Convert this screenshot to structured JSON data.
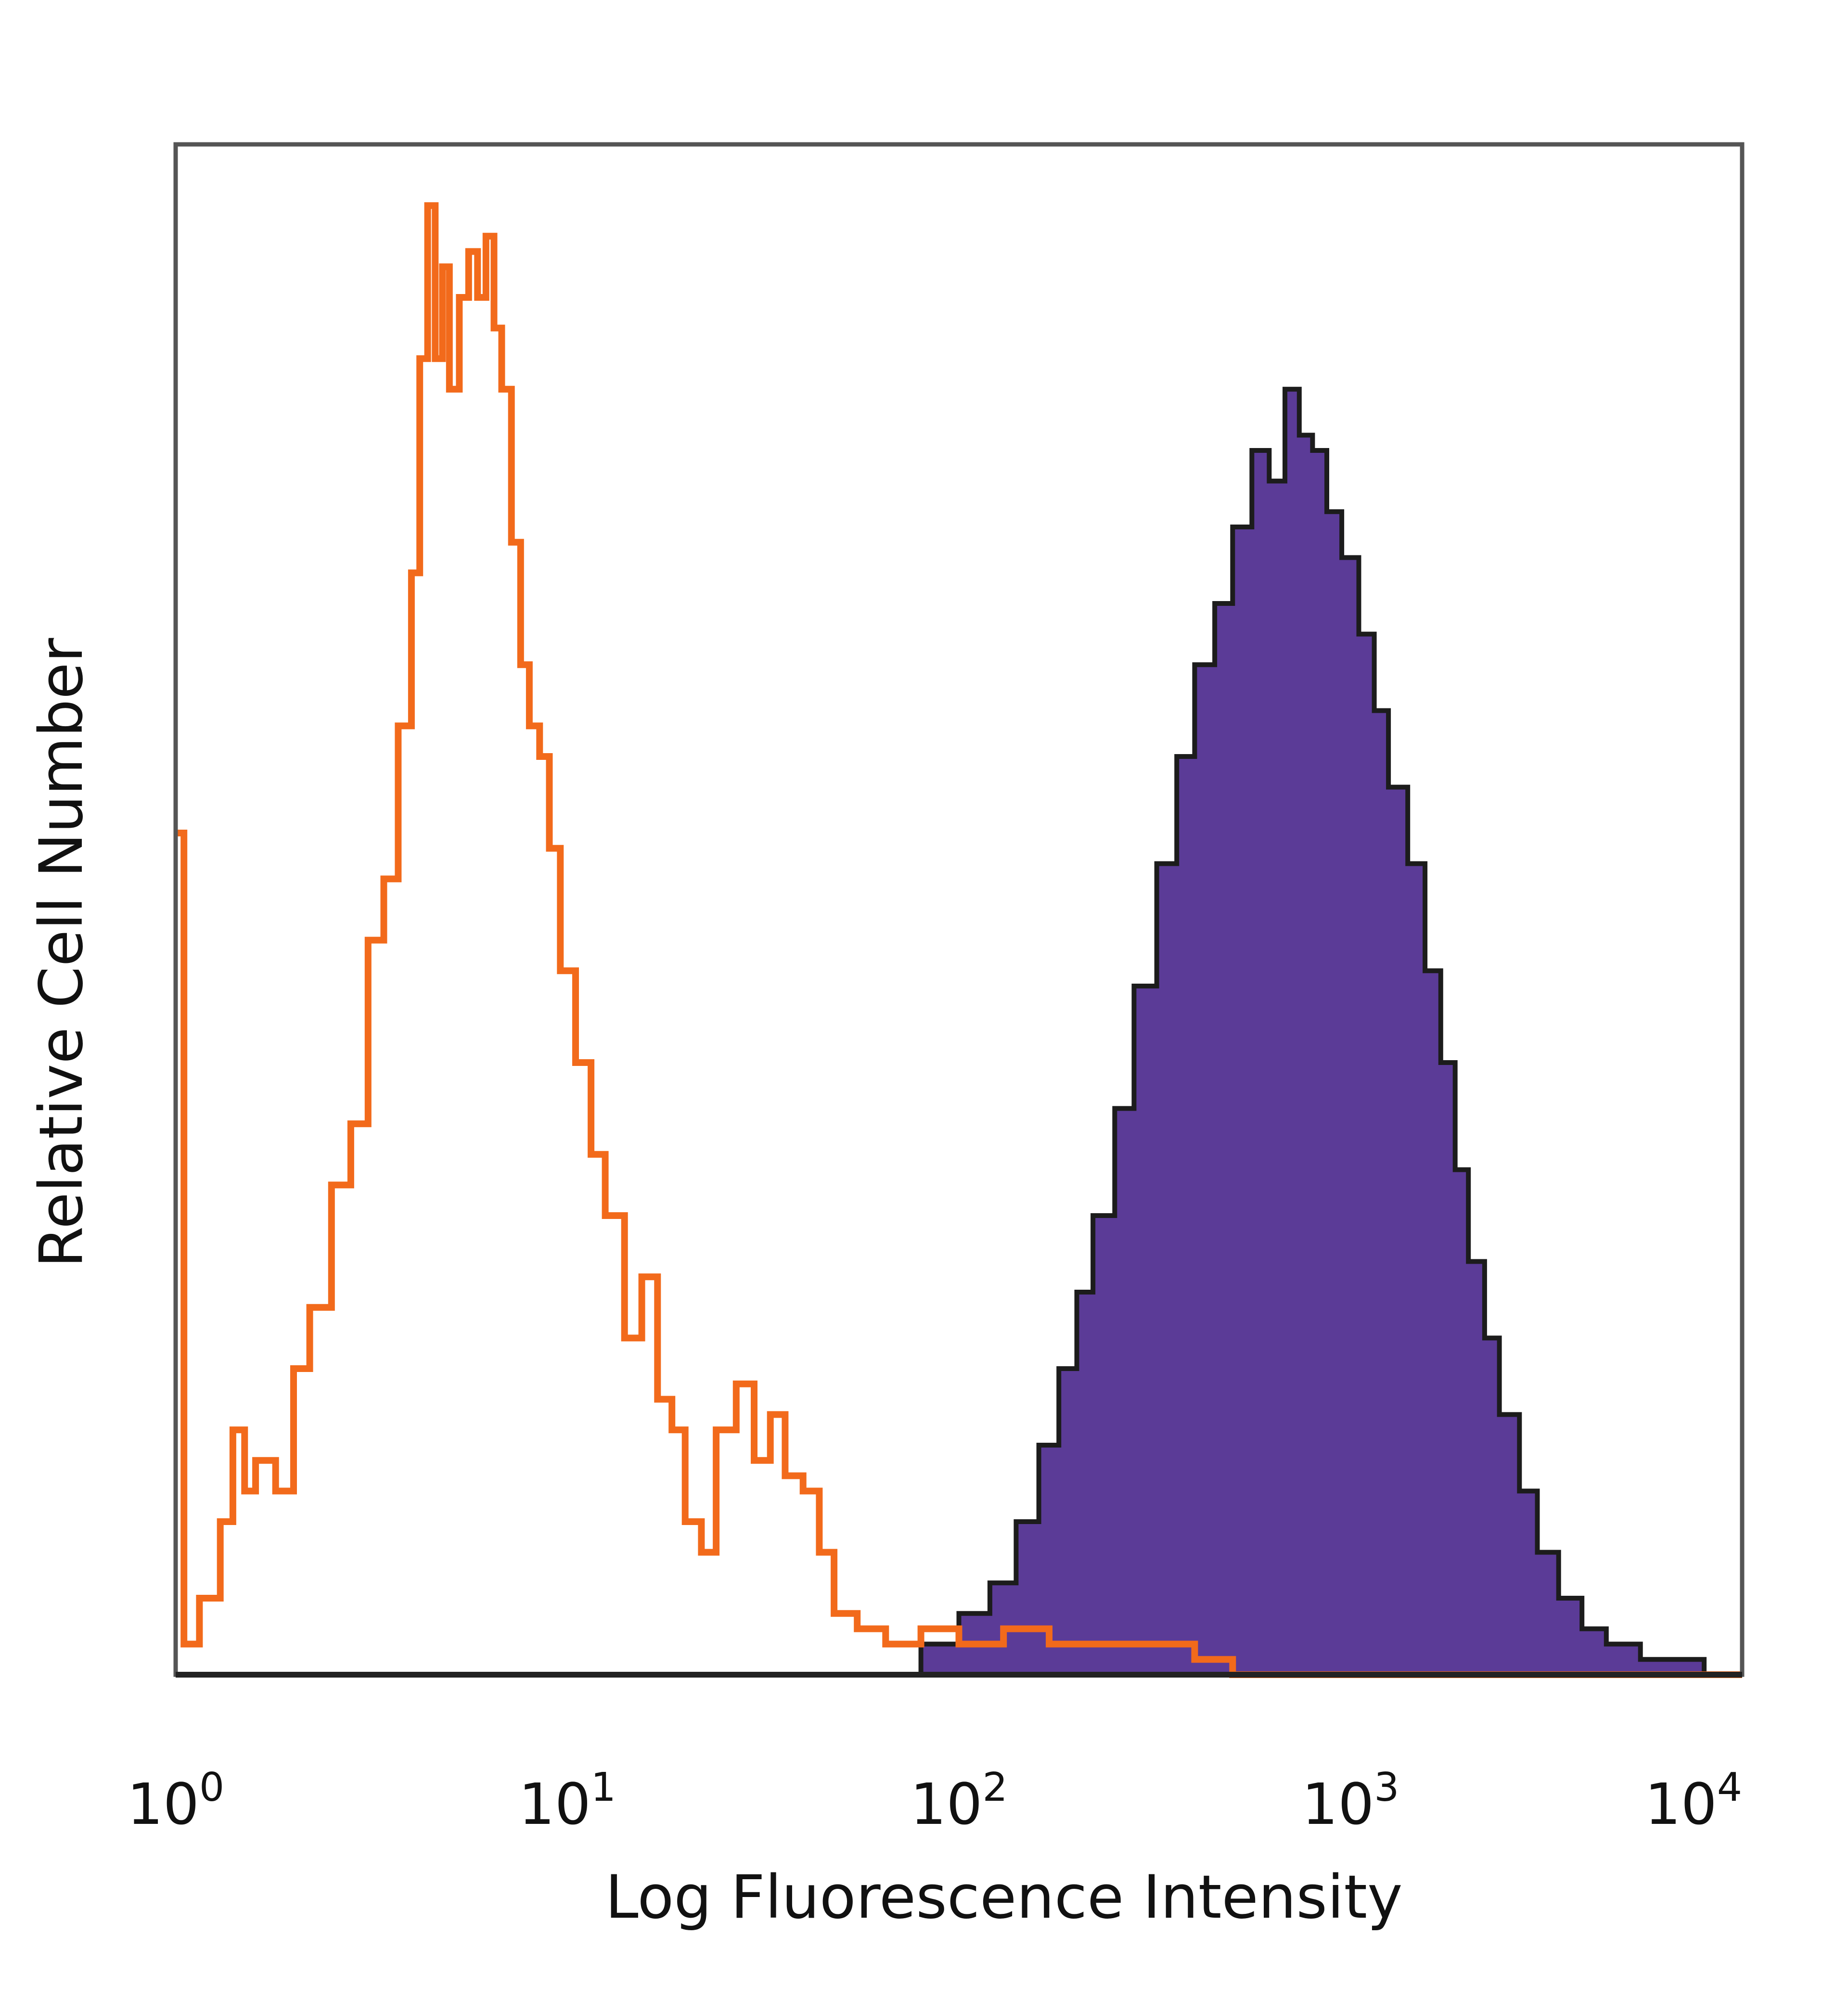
{
  "chart_data": {
    "type": "area",
    "xlabel": "Log Fluorescence Intensity",
    "ylabel": "Relative Cell Number",
    "x_scale": "log",
    "xlim": [
      1,
      10000
    ],
    "ylim": [
      0,
      1
    ],
    "x_ticks": [
      {
        "base": "10",
        "exp": "0"
      },
      {
        "base": "10",
        "exp": "1"
      },
      {
        "base": "10",
        "exp": "2"
      },
      {
        "base": "10",
        "exp": "3"
      },
      {
        "base": "10",
        "exp": "4"
      }
    ],
    "grid": false,
    "legend": "none",
    "series": [
      {
        "style": "outline",
        "color": "#f26a1b",
        "points": [
          [
            1.0,
            0.55
          ],
          [
            1.05,
            0.02
          ],
          [
            1.15,
            0.05
          ],
          [
            1.3,
            0.1
          ],
          [
            1.4,
            0.16
          ],
          [
            1.5,
            0.12
          ],
          [
            1.6,
            0.14
          ],
          [
            1.8,
            0.12
          ],
          [
            2.0,
            0.2
          ],
          [
            2.2,
            0.24
          ],
          [
            2.5,
            0.32
          ],
          [
            2.8,
            0.36
          ],
          [
            3.1,
            0.48
          ],
          [
            3.4,
            0.52
          ],
          [
            3.7,
            0.62
          ],
          [
            4.0,
            0.72
          ],
          [
            4.2,
            0.86
          ],
          [
            4.4,
            0.96
          ],
          [
            4.6,
            0.86
          ],
          [
            4.8,
            0.92
          ],
          [
            5.0,
            0.84
          ],
          [
            5.3,
            0.9
          ],
          [
            5.6,
            0.93
          ],
          [
            5.9,
            0.9
          ],
          [
            6.2,
            0.94
          ],
          [
            6.5,
            0.88
          ],
          [
            6.8,
            0.84
          ],
          [
            7.2,
            0.74
          ],
          [
            7.6,
            0.66
          ],
          [
            8.0,
            0.62
          ],
          [
            8.5,
            0.6
          ],
          [
            9.0,
            0.54
          ],
          [
            9.6,
            0.46
          ],
          [
            10.5,
            0.4
          ],
          [
            11.5,
            0.34
          ],
          [
            12.5,
            0.3
          ],
          [
            14.0,
            0.22
          ],
          [
            15.5,
            0.26
          ],
          [
            17.0,
            0.18
          ],
          [
            18.5,
            0.16
          ],
          [
            20.0,
            0.1
          ],
          [
            22.0,
            0.08
          ],
          [
            24.0,
            0.16
          ],
          [
            27.0,
            0.19
          ],
          [
            30.0,
            0.14
          ],
          [
            33.0,
            0.17
          ],
          [
            36.0,
            0.13
          ],
          [
            40.0,
            0.12
          ],
          [
            44.0,
            0.08
          ],
          [
            48.0,
            0.04
          ],
          [
            55.0,
            0.03
          ],
          [
            65.0,
            0.02
          ],
          [
            80.0,
            0.03
          ],
          [
            100.0,
            0.02
          ],
          [
            130.0,
            0.03
          ],
          [
            170.0,
            0.02
          ],
          [
            220.0,
            0.02
          ],
          [
            300.0,
            0.02
          ],
          [
            400.0,
            0.01
          ],
          [
            500.0,
            0.0
          ],
          [
            10000.0,
            0.0
          ]
        ]
      },
      {
        "style": "filled",
        "color": "#5b3b97",
        "outline": "#1c1c1c",
        "points": [
          [
            1.0,
            0.0
          ],
          [
            60.0,
            0.0
          ],
          [
            80.0,
            0.02
          ],
          [
            100.0,
            0.04
          ],
          [
            120.0,
            0.06
          ],
          [
            140.0,
            0.1
          ],
          [
            160.0,
            0.15
          ],
          [
            180.0,
            0.2
          ],
          [
            200.0,
            0.25
          ],
          [
            220.0,
            0.3
          ],
          [
            250.0,
            0.37
          ],
          [
            280.0,
            0.45
          ],
          [
            320.0,
            0.53
          ],
          [
            360.0,
            0.6
          ],
          [
            400.0,
            0.66
          ],
          [
            450.0,
            0.7
          ],
          [
            500.0,
            0.75
          ],
          [
            560.0,
            0.8
          ],
          [
            620.0,
            0.78
          ],
          [
            680.0,
            0.84
          ],
          [
            740.0,
            0.81
          ],
          [
            800.0,
            0.8
          ],
          [
            870.0,
            0.76
          ],
          [
            950.0,
            0.73
          ],
          [
            1050.0,
            0.68
          ],
          [
            1150.0,
            0.63
          ],
          [
            1250.0,
            0.58
          ],
          [
            1400.0,
            0.53
          ],
          [
            1550.0,
            0.46
          ],
          [
            1700.0,
            0.4
          ],
          [
            1850.0,
            0.33
          ],
          [
            2000.0,
            0.27
          ],
          [
            2200.0,
            0.22
          ],
          [
            2400.0,
            0.17
          ],
          [
            2700.0,
            0.12
          ],
          [
            3000.0,
            0.08
          ],
          [
            3400.0,
            0.05
          ],
          [
            3900.0,
            0.03
          ],
          [
            4500.0,
            0.02
          ],
          [
            5500.0,
            0.01
          ],
          [
            7000.0,
            0.01
          ],
          [
            8000.0,
            0.0
          ],
          [
            10000.0,
            0.0
          ]
        ]
      }
    ]
  }
}
